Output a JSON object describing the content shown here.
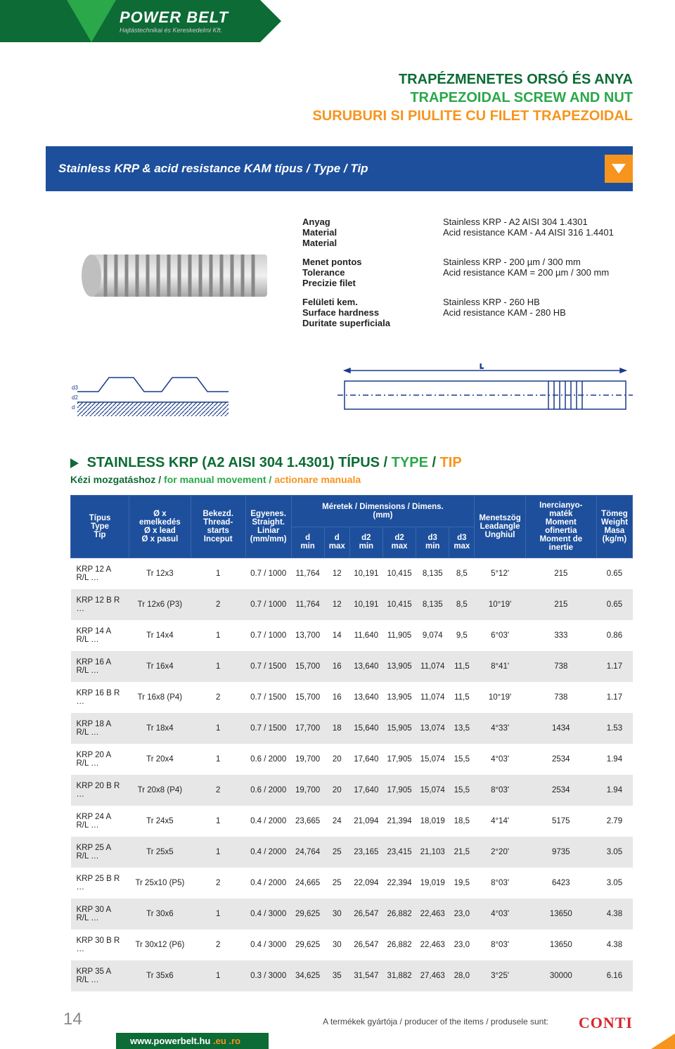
{
  "header": {
    "logo_main": "POWER BELT",
    "logo_sub": "Hajtástechnikai és Kereskedelmi Kft."
  },
  "title": {
    "hu": "TRAPÉZMENETES ORSÓ ÉS ANYA",
    "en": "TRAPEZOIDAL SCREW AND NUT",
    "ro": "SURUBURI SI PIULITE CU FILET TRAPEZOIDAL"
  },
  "blue_bar": "Stainless KRP & acid resistance KAM típus / Type / Tip",
  "specs": {
    "rows": [
      {
        "labels": [
          "Anyag",
          "Material",
          "Material"
        ],
        "values": [
          "Stainless KRP - A2 AISI 304 1.4301",
          "Acid resistance KAM - A4 AISI 316 1.4401"
        ]
      },
      {
        "labels": [
          "Menet pontos",
          "Tolerance",
          "Precizie filet"
        ],
        "values": [
          "Stainless KRP - 200 µm / 300 mm",
          "Acid resistance KAM = 200 µm / 300 mm"
        ]
      },
      {
        "labels": [
          "Felületi kem.",
          "Surface hardness",
          "Duritate superficiala"
        ],
        "values": [
          "Stainless KRP - 260 HB",
          "Acid resistance KAM - 280 HB"
        ]
      }
    ]
  },
  "section": {
    "title_pre": "STAINLESS KRP (A2 AISI 304 1.4301) TÍPUS / ",
    "title_en": "TYPE",
    "title_sep": " / ",
    "title_ro": "TIP",
    "sub_hu": "Kézi mozgatáshoz / ",
    "sub_en": "for manual movement / ",
    "sub_ro": "actionare manuala"
  },
  "table": {
    "head": {
      "type": [
        "Típus",
        "Type",
        "Tip"
      ],
      "lead": [
        "Ø x emelkedés",
        "Ø x lead",
        "Ø x pasul"
      ],
      "starts": [
        "Bekezd.",
        "Thread-starts",
        "Inceput"
      ],
      "straight": [
        "Egyenes.",
        "Straight.",
        "Liniar",
        "(mm/mm)"
      ],
      "dim_head": "Méretek / Dimensions / Dimens.\n(mm)",
      "dim_cols": [
        "d\nmin",
        "d\nmax",
        "d2\nmin",
        "d2\nmax",
        "d3\nmin",
        "d3\nmax"
      ],
      "leadangle": [
        "Menetszög",
        "Leadangle",
        "Unghiul"
      ],
      "moment": [
        "Inercianyo-maték",
        "Moment ofinertia",
        "Moment de inertie"
      ],
      "weight": [
        "Tömeg",
        "Weight",
        "Masa",
        "(kg/m)"
      ]
    },
    "rows": [
      [
        "KRP 12 A R/L …",
        "Tr 12x3",
        "1",
        "0.7 / 1000",
        "11,764",
        "12",
        "10,191",
        "10,415",
        "8,135",
        "8,5",
        "5°12'",
        "215",
        "0.65"
      ],
      [
        "KRP 12 B R …",
        "Tr 12x6 (P3)",
        "2",
        "0.7 / 1000",
        "11,764",
        "12",
        "10,191",
        "10,415",
        "8,135",
        "8,5",
        "10°19'",
        "215",
        "0.65"
      ],
      [
        "KRP 14 A R/L …",
        "Tr 14x4",
        "1",
        "0.7 / 1000",
        "13,700",
        "14",
        "11,640",
        "11,905",
        "9,074",
        "9,5",
        "6°03'",
        "333",
        "0.86"
      ],
      [
        "KRP 16 A R/L …",
        "Tr 16x4",
        "1",
        "0.7 / 1500",
        "15,700",
        "16",
        "13,640",
        "13,905",
        "11,074",
        "11,5",
        "8°41'",
        "738",
        "1.17"
      ],
      [
        "KRP 16 B R …",
        "Tr 16x8 (P4)",
        "2",
        "0.7 / 1500",
        "15,700",
        "16",
        "13,640",
        "13,905",
        "11,074",
        "11,5",
        "10°19'",
        "738",
        "1.17"
      ],
      [
        "KRP 18 A R/L …",
        "Tr 18x4",
        "1",
        "0.7 / 1500",
        "17,700",
        "18",
        "15,640",
        "15,905",
        "13,074",
        "13,5",
        "4°33'",
        "1434",
        "1.53"
      ],
      [
        "KRP 20 A R/L …",
        "Tr 20x4",
        "1",
        "0.6 / 2000",
        "19,700",
        "20",
        "17,640",
        "17,905",
        "15,074",
        "15,5",
        "4°03'",
        "2534",
        "1.94"
      ],
      [
        "KRP 20 B R …",
        "Tr 20x8 (P4)",
        "2",
        "0.6 / 2000",
        "19,700",
        "20",
        "17,640",
        "17,905",
        "15,074",
        "15,5",
        "8°03'",
        "2534",
        "1.94"
      ],
      [
        "KRP 24 A R/L …",
        "Tr 24x5",
        "1",
        "0.4 / 2000",
        "23,665",
        "24",
        "21,094",
        "21,394",
        "18,019",
        "18,5",
        "4°14'",
        "5175",
        "2.79"
      ],
      [
        "KRP 25 A R/L …",
        "Tr 25x5",
        "1",
        "0.4 / 2000",
        "24,764",
        "25",
        "23,165",
        "23,415",
        "21,103",
        "21,5",
        "2°20'",
        "9735",
        "3.05"
      ],
      [
        "KRP 25 B R …",
        "Tr 25x10 (P5)",
        "2",
        "0.4 / 2000",
        "24,665",
        "25",
        "22,094",
        "22,394",
        "19,019",
        "19,5",
        "8°03'",
        "6423",
        "3.05"
      ],
      [
        "KRP 30 A R/L …",
        "Tr 30x6",
        "1",
        "0.4 / 3000",
        "29,625",
        "30",
        "26,547",
        "26,882",
        "22,463",
        "23,0",
        "4°03'",
        "13650",
        "4.38"
      ],
      [
        "KRP 30 B R …",
        "Tr 30x12 (P6)",
        "2",
        "0.4 / 3000",
        "29,625",
        "30",
        "26,547",
        "26,882",
        "22,463",
        "23,0",
        "8°03'",
        "13650",
        "4.38"
      ],
      [
        "KRP 35 A R/L …",
        "Tr 35x6",
        "1",
        "0.3 / 3000",
        "34,625",
        "35",
        "31,547",
        "31,882",
        "27,463",
        "28,0",
        "3°25'",
        "30000",
        "6.16"
      ]
    ]
  },
  "footer": {
    "page": "14",
    "producer": "A termékek gyártója / producer of the items / produsele sunt:",
    "conti": "CONTI",
    "url_base": "www.powerbelt.hu",
    "url_eu": " .eu",
    "url_ro": " .ro"
  },
  "colors": {
    "green_dark": "#0d6b35",
    "green_light": "#2aa84a",
    "orange": "#f7941d",
    "blue": "#1d4f9c",
    "row_alt": "#e7e7e7",
    "conti_red": "#d7262c"
  }
}
